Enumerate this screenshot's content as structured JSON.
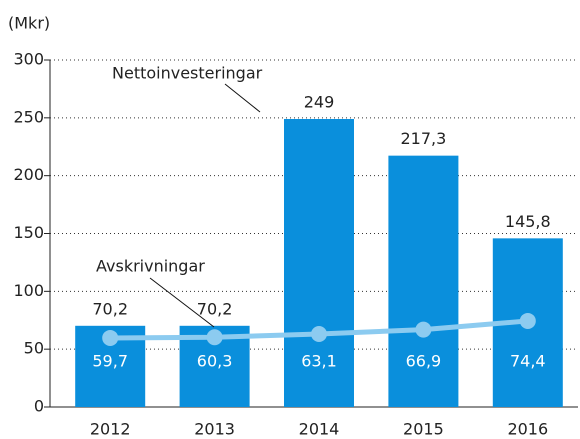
{
  "chart_data": {
    "type": "bar_line",
    "y_label": "(Mkr)",
    "categories": [
      "2012",
      "2013",
      "2014",
      "2015",
      "2016"
    ],
    "series": [
      {
        "name": "Nettoinvesteringar",
        "type": "bar",
        "color": "#0a8fdc",
        "values": [
          70.2,
          70.2,
          249,
          217.3,
          145.8
        ],
        "value_labels": [
          "70,2",
          "70,2",
          "249",
          "217,3",
          "145,8"
        ]
      },
      {
        "name": "Avskrivningar",
        "type": "line",
        "color": "#8ccbf0",
        "values": [
          59.7,
          60.3,
          63.1,
          66.9,
          74.4
        ],
        "value_labels": [
          "59,7",
          "60,3",
          "63,1",
          "66,9",
          "74,4"
        ]
      }
    ],
    "ylim": [
      0,
      300
    ],
    "yticks": [
      0,
      50,
      100,
      150,
      200,
      250,
      300
    ],
    "grid": true
  }
}
